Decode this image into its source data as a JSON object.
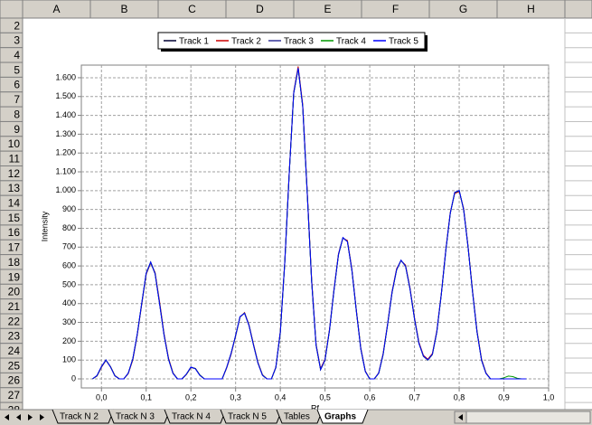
{
  "spreadsheet": {
    "columns": [
      "A",
      "B",
      "C",
      "D",
      "E",
      "F",
      "G",
      "H"
    ],
    "rows": [
      2,
      3,
      4,
      5,
      6,
      7,
      8,
      9,
      10,
      11,
      12,
      13,
      14,
      15,
      16,
      17,
      18,
      19,
      20,
      21,
      22,
      23,
      24,
      25,
      26,
      27,
      28
    ],
    "sheet_tabs": [
      "Track N 2",
      "Track N 3",
      "Track N 4",
      "Track N 5",
      "Tables",
      "Graphs"
    ],
    "active_tab": "Graphs"
  },
  "chart_data": {
    "type": "line",
    "x_label": "Rf",
    "y_label": "Intensity",
    "x": [
      -0.02,
      -0.01,
      0.0,
      0.01,
      0.02,
      0.03,
      0.04,
      0.05,
      0.06,
      0.07,
      0.08,
      0.09,
      0.1,
      0.11,
      0.12,
      0.13,
      0.14,
      0.15,
      0.16,
      0.17,
      0.18,
      0.19,
      0.2,
      0.21,
      0.22,
      0.23,
      0.24,
      0.25,
      0.26,
      0.27,
      0.28,
      0.29,
      0.3,
      0.31,
      0.32,
      0.33,
      0.34,
      0.35,
      0.36,
      0.37,
      0.38,
      0.39,
      0.4,
      0.41,
      0.42,
      0.43,
      0.44,
      0.45,
      0.46,
      0.47,
      0.48,
      0.49,
      0.5,
      0.51,
      0.52,
      0.53,
      0.54,
      0.55,
      0.56,
      0.57,
      0.58,
      0.59,
      0.6,
      0.61,
      0.62,
      0.63,
      0.64,
      0.65,
      0.66,
      0.67,
      0.68,
      0.69,
      0.7,
      0.71,
      0.72,
      0.73,
      0.74,
      0.75,
      0.76,
      0.77,
      0.78,
      0.79,
      0.8,
      0.81,
      0.82,
      0.83,
      0.84,
      0.85,
      0.86,
      0.87,
      0.88,
      0.89,
      0.9,
      0.91,
      0.92,
      0.93,
      0.94,
      0.95
    ],
    "series": [
      {
        "name": "Track 1",
        "color": "#000033",
        "values": [
          0,
          17,
          65,
          100,
          65,
          17,
          0,
          0,
          30,
          105,
          235,
          400,
          560,
          620,
          560,
          400,
          235,
          105,
          30,
          0,
          0,
          25,
          62,
          55,
          20,
          0,
          0,
          0,
          0,
          0,
          60,
          135,
          230,
          330,
          350,
          285,
          180,
          85,
          20,
          0,
          0,
          60,
          250,
          620,
          1100,
          1520,
          1650,
          1450,
          1000,
          520,
          180,
          50,
          100,
          260,
          470,
          660,
          750,
          730,
          580,
          360,
          160,
          40,
          0,
          0,
          30,
          130,
          290,
          460,
          580,
          630,
          600,
          480,
          320,
          190,
          120,
          100,
          130,
          250,
          450,
          680,
          880,
          990,
          1000,
          900,
          700,
          460,
          250,
          100,
          30,
          0,
          0,
          0,
          0,
          0,
          0,
          0,
          0,
          0
        ]
      },
      {
        "name": "Track 2",
        "color": "#cc0000",
        "values": [
          0,
          15,
          62,
          98,
          66,
          18,
          0,
          0,
          28,
          100,
          230,
          395,
          555,
          615,
          565,
          410,
          240,
          110,
          32,
          0,
          0,
          24,
          60,
          56,
          21,
          0,
          0,
          0,
          0,
          0,
          58,
          130,
          228,
          328,
          352,
          288,
          184,
          88,
          22,
          0,
          0,
          62,
          255,
          625,
          1105,
          1525,
          1660,
          1460,
          1010,
          530,
          185,
          55,
          105,
          265,
          475,
          665,
          748,
          735,
          585,
          365,
          165,
          42,
          0,
          0,
          32,
          135,
          295,
          465,
          585,
          628,
          605,
          485,
          325,
          195,
          125,
          105,
          135,
          255,
          455,
          685,
          885,
          985,
          995,
          905,
          705,
          465,
          255,
          105,
          32,
          0,
          0,
          0,
          0,
          0,
          0,
          0,
          0,
          0
        ]
      },
      {
        "name": "Track 3",
        "color": "#333399",
        "values": [
          0,
          16,
          64,
          99,
          64,
          16,
          0,
          0,
          30,
          104,
          234,
          398,
          558,
          618,
          558,
          398,
          234,
          104,
          30,
          0,
          0,
          25,
          61,
          54,
          20,
          0,
          0,
          0,
          0,
          0,
          60,
          134,
          229,
          329,
          349,
          284,
          179,
          84,
          20,
          0,
          0,
          60,
          249,
          618,
          1098,
          1518,
          1648,
          1448,
          998,
          518,
          179,
          50,
          100,
          259,
          469,
          659,
          749,
          729,
          579,
          359,
          159,
          40,
          0,
          0,
          30,
          129,
          289,
          459,
          579,
          629,
          599,
          479,
          319,
          189,
          119,
          100,
          129,
          249,
          449,
          679,
          879,
          989,
          999,
          899,
          699,
          459,
          249,
          100,
          30,
          0,
          0,
          0,
          0,
          0,
          0,
          0,
          0,
          0
        ]
      },
      {
        "name": "Track 4",
        "color": "#009900",
        "values": [
          0,
          17,
          65,
          100,
          65,
          17,
          0,
          0,
          30,
          105,
          235,
          400,
          560,
          620,
          560,
          400,
          235,
          105,
          30,
          0,
          0,
          25,
          62,
          55,
          20,
          0,
          0,
          0,
          0,
          0,
          60,
          135,
          230,
          330,
          350,
          285,
          180,
          85,
          20,
          0,
          0,
          60,
          250,
          620,
          1100,
          1520,
          1650,
          1450,
          1000,
          520,
          180,
          50,
          100,
          260,
          470,
          660,
          750,
          730,
          580,
          360,
          160,
          40,
          0,
          0,
          30,
          130,
          290,
          460,
          580,
          630,
          600,
          480,
          320,
          190,
          120,
          100,
          130,
          250,
          450,
          680,
          880,
          990,
          1000,
          900,
          700,
          460,
          250,
          100,
          30,
          0,
          0,
          0,
          6,
          15,
          12,
          3,
          0,
          0
        ]
      },
      {
        "name": "Track 5",
        "color": "#0000ff",
        "values": [
          0,
          18,
          66,
          101,
          64,
          16,
          0,
          0,
          31,
          106,
          236,
          402,
          561,
          621,
          559,
          399,
          233,
          104,
          29,
          0,
          0,
          26,
          63,
          54,
          19,
          0,
          0,
          0,
          0,
          0,
          61,
          136,
          231,
          331,
          349,
          284,
          179,
          84,
          19,
          0,
          0,
          61,
          251,
          621,
          1101,
          1521,
          1651,
          1449,
          999,
          519,
          179,
          49,
          101,
          261,
          471,
          661,
          751,
          729,
          579,
          359,
          159,
          39,
          0,
          0,
          31,
          131,
          291,
          461,
          581,
          631,
          599,
          479,
          319,
          189,
          121,
          101,
          131,
          251,
          451,
          681,
          881,
          991,
          1001,
          899,
          699,
          459,
          249,
          99,
          29,
          0,
          0,
          0,
          0,
          0,
          0,
          0,
          0,
          0
        ]
      }
    ],
    "xlim": [
      -0.045,
      1.0
    ],
    "xticks": [
      {
        "value": 0,
        "label": "0,0"
      },
      {
        "value": 0.1,
        "label": "0,1"
      },
      {
        "value": 0.2,
        "label": "0,2"
      },
      {
        "value": 0.3,
        "label": "0,3"
      },
      {
        "value": 0.4,
        "label": "0,4"
      },
      {
        "value": 0.5,
        "label": "0,5"
      },
      {
        "value": 0.6,
        "label": "0,6"
      },
      {
        "value": 0.7,
        "label": "0,7"
      },
      {
        "value": 0.8,
        "label": "0,8"
      },
      {
        "value": 0.9,
        "label": "0,9"
      },
      {
        "value": 1.0,
        "label": "1,0"
      }
    ],
    "ylim": [
      -48,
      1667
    ],
    "yticks": [
      0,
      100,
      200,
      300,
      400,
      500,
      600,
      700,
      800,
      900,
      {
        "value": 1000,
        "label": "1.000"
      },
      {
        "value": 1100,
        "label": "1.100"
      },
      {
        "value": 1200,
        "label": "1.200"
      },
      {
        "value": 1300,
        "label": "1.300"
      },
      {
        "value": 1400,
        "label": "1.400"
      },
      {
        "value": 1500,
        "label": "1.500"
      },
      {
        "value": 1600,
        "label": "1.600"
      }
    ],
    "grid": true,
    "legend": "top"
  }
}
